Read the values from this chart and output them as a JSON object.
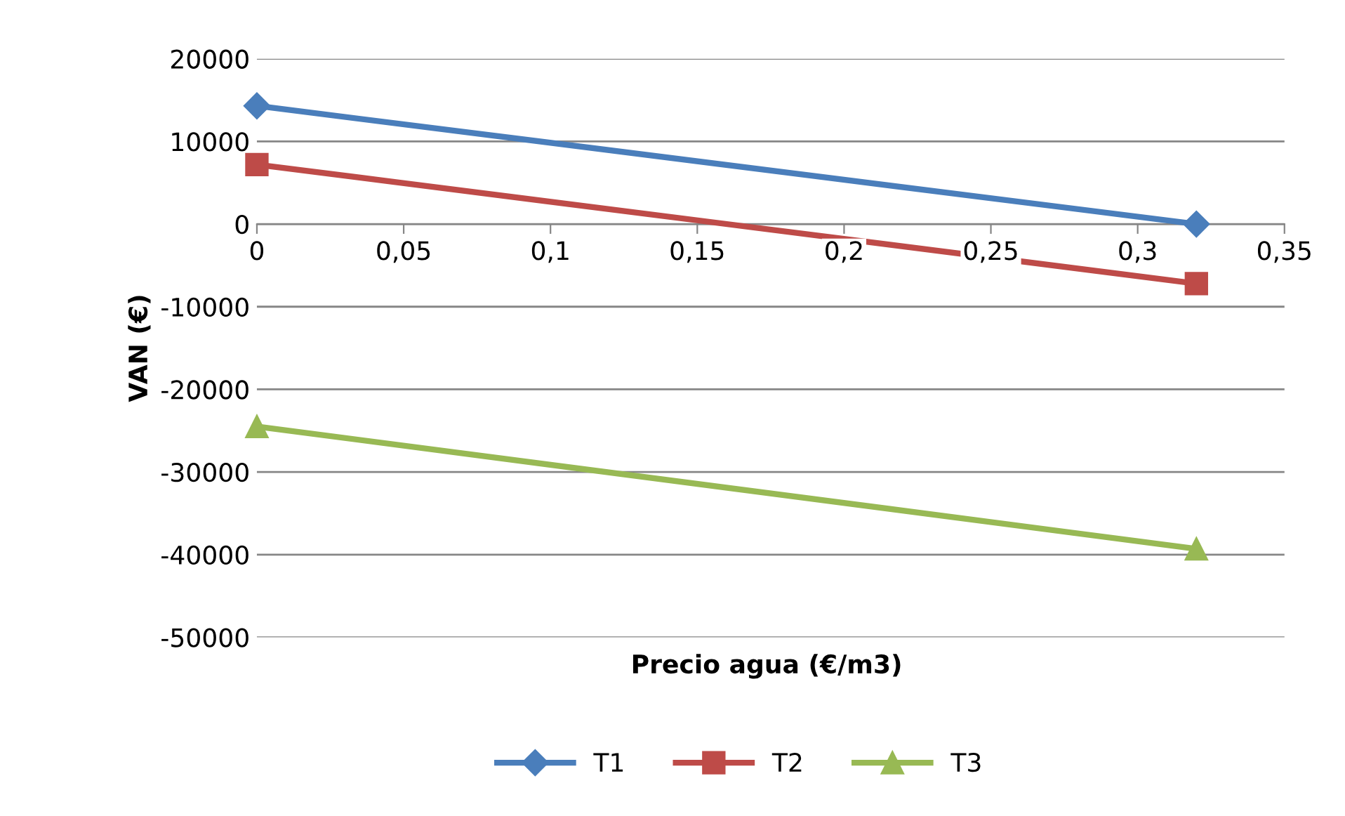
{
  "chart_data": {
    "type": "line",
    "xlabel": "Precio agua (€/m3)",
    "ylabel": "VAN (€)",
    "x": [
      0,
      0.32
    ],
    "series": [
      {
        "name": "T1",
        "color": "#4a7ebb",
        "marker": "diamond",
        "values": [
          14300,
          0
        ]
      },
      {
        "name": "T2",
        "color": "#be4b48",
        "marker": "square",
        "values": [
          7200,
          -7200
        ]
      },
      {
        "name": "T3",
        "color": "#98b954",
        "marker": "triangle",
        "values": [
          -24500,
          -39300
        ]
      }
    ],
    "xlim": [
      0,
      0.35
    ],
    "xticks": [
      {
        "value": 0,
        "label": "0"
      },
      {
        "value": 0.05,
        "label": "0,05"
      },
      {
        "value": 0.1,
        "label": "0,1"
      },
      {
        "value": 0.15,
        "label": "0,15"
      },
      {
        "value": 0.2,
        "label": "0,2"
      },
      {
        "value": 0.25,
        "label": "0,25"
      },
      {
        "value": 0.3,
        "label": "0,3"
      },
      {
        "value": 0.35,
        "label": "0,35"
      }
    ],
    "ylim": [
      -50000,
      20000
    ],
    "yticks": [
      -50000,
      -40000,
      -30000,
      -20000,
      -10000,
      0,
      10000,
      20000
    ],
    "grid": "y",
    "legend": "bottom"
  }
}
